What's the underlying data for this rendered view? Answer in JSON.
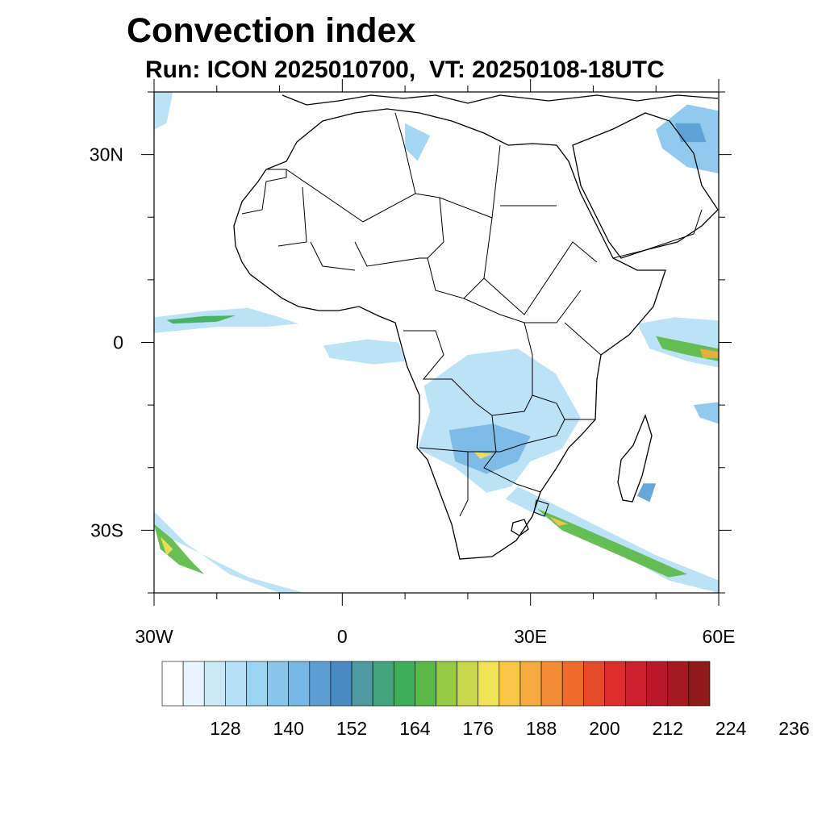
{
  "title": "Convection index",
  "subtitle": "Run: ICON 2025010700,  VT: 20250108-18UTC",
  "map": {
    "lon_range": [
      -30,
      60
    ],
    "lat_range": [
      -40,
      40
    ],
    "lat_tick_labels": [
      {
        "lat": 30,
        "label": "30N"
      },
      {
        "lat": 0,
        "label": "0"
      },
      {
        "lat": -30,
        "label": "30S"
      }
    ],
    "lon_tick_labels": [
      {
        "lon": -30,
        "label": "30W"
      },
      {
        "lon": 0,
        "label": "0"
      },
      {
        "lon": 30,
        "label": "30E"
      },
      {
        "lon": 60,
        "label": "60E"
      }
    ],
    "minor_lat_ticks": [
      40,
      30,
      20,
      10,
      0,
      -10,
      -20,
      -30,
      -40
    ],
    "minor_lon_ticks": [
      -30,
      -20,
      -10,
      0,
      10,
      20,
      30,
      40,
      50,
      60
    ]
  },
  "colorbar": {
    "colors": [
      "#ffffff",
      "#e8f4fb",
      "#cbe8f6",
      "#b6e0f5",
      "#9bd4f1",
      "#89c6ec",
      "#79b7e5",
      "#5b9fd4",
      "#4a8ac2",
      "#4f9aa0",
      "#43a57c",
      "#3fae5a",
      "#5cb947",
      "#98c947",
      "#c7d84e",
      "#f0e356",
      "#f7c649",
      "#f4aa40",
      "#f28c37",
      "#ee6b2e",
      "#e54a2a",
      "#dc2e2a",
      "#cc1f2c",
      "#b8182a",
      "#a31a22",
      "#8e1a1a"
    ],
    "labels": [
      "128",
      "140",
      "152",
      "164",
      "176",
      "188",
      "200",
      "212",
      "224",
      "236"
    ]
  },
  "fields": [
    {
      "name": "gulf-of-guinea-west",
      "level": 3,
      "poly": [
        [
          -30,
          4
        ],
        [
          -22,
          5
        ],
        [
          -15,
          5.5
        ],
        [
          -10,
          4
        ],
        [
          -7,
          3
        ],
        [
          -12,
          2.5
        ],
        [
          -20,
          2.5
        ],
        [
          -30,
          1.5
        ]
      ]
    },
    {
      "name": "gulf-of-guinea-core",
      "level": 11,
      "poly": [
        [
          -28,
          3.6
        ],
        [
          -22,
          4.2
        ],
        [
          -17,
          4.3
        ],
        [
          -20,
          3.3
        ],
        [
          -27,
          3
        ]
      ]
    },
    {
      "name": "south-atlantic-band",
      "level": 3,
      "poly": [
        [
          -30,
          -27
        ],
        [
          -25,
          -32
        ],
        [
          -18,
          -37
        ],
        [
          -10,
          -40
        ],
        [
          -6,
          -40
        ],
        [
          -15,
          -37.5
        ],
        [
          -24,
          -33
        ],
        [
          -30,
          -30
        ]
      ]
    },
    {
      "name": "south-atlantic-core",
      "level": 12,
      "poly": [
        [
          -30,
          -29
        ],
        [
          -27,
          -31.5
        ],
        [
          -24,
          -35
        ],
        [
          -22,
          -37
        ],
        [
          -26,
          -35.5
        ],
        [
          -29,
          -33
        ]
      ]
    },
    {
      "name": "south-atlantic-hot",
      "level": 15,
      "poly": [
        [
          -29,
          -31
        ],
        [
          -27,
          -33
        ],
        [
          -28,
          -34
        ]
      ]
    },
    {
      "name": "southern-africa",
      "level": 3,
      "poly": [
        [
          13,
          -7
        ],
        [
          20,
          -2
        ],
        [
          28,
          -1
        ],
        [
          34,
          -5
        ],
        [
          38,
          -12
        ],
        [
          35,
          -17
        ],
        [
          30,
          -19
        ],
        [
          27,
          -23
        ],
        [
          23,
          -24
        ],
        [
          18,
          -20
        ],
        [
          12,
          -17
        ],
        [
          14,
          -11
        ]
      ]
    },
    {
      "name": "southern-africa-core",
      "level": 6,
      "poly": [
        [
          17,
          -14
        ],
        [
          24,
          -13
        ],
        [
          30,
          -15
        ],
        [
          28,
          -19
        ],
        [
          23,
          -21
        ],
        [
          18,
          -19
        ]
      ]
    },
    {
      "name": "botswana-hot",
      "level": 15,
      "poly": [
        [
          21,
          -17.5
        ],
        [
          24,
          -17.8
        ],
        [
          22,
          -18.6
        ]
      ]
    },
    {
      "name": "natal-band",
      "level": 3,
      "poly": [
        [
          28,
          -23
        ],
        [
          33,
          -25.5
        ],
        [
          40,
          -29
        ],
        [
          50,
          -34
        ],
        [
          60,
          -38
        ],
        [
          60,
          -40
        ],
        [
          52,
          -38
        ],
        [
          43,
          -33
        ],
        [
          35,
          -29
        ],
        [
          30,
          -27
        ],
        [
          26,
          -25
        ]
      ]
    },
    {
      "name": "natal-core",
      "level": 12,
      "poly": [
        [
          31,
          -26.5
        ],
        [
          38,
          -29.5
        ],
        [
          46,
          -33
        ],
        [
          55,
          -37
        ],
        [
          52,
          -37.5
        ],
        [
          43,
          -33.5
        ],
        [
          35,
          -30
        ]
      ]
    },
    {
      "name": "natal-hot",
      "level": 16,
      "poly": [
        [
          33,
          -27.8
        ],
        [
          36,
          -29
        ],
        [
          34.5,
          -29.3
        ]
      ]
    },
    {
      "name": "east-indian-ocean",
      "level": 3,
      "poly": [
        [
          47,
          3
        ],
        [
          53,
          4
        ],
        [
          60,
          3.5
        ],
        [
          60,
          -4
        ],
        [
          55,
          -3
        ],
        [
          49,
          -1
        ]
      ]
    },
    {
      "name": "east-indian-core",
      "level": 12,
      "poly": [
        [
          50,
          1
        ],
        [
          55,
          0
        ],
        [
          60,
          -1
        ],
        [
          60,
          -3
        ],
        [
          55,
          -2
        ],
        [
          51,
          -1
        ]
      ]
    },
    {
      "name": "east-indian-hot",
      "level": 17,
      "poly": [
        [
          57,
          -1
        ],
        [
          60,
          -1.5
        ],
        [
          60,
          -2.5
        ],
        [
          57.5,
          -2.5
        ]
      ]
    },
    {
      "name": "arabian-gulf",
      "level": 5,
      "poly": [
        [
          50,
          34
        ],
        [
          55,
          38
        ],
        [
          60,
          37
        ],
        [
          60,
          27
        ],
        [
          55,
          28
        ],
        [
          51,
          31
        ]
      ]
    },
    {
      "name": "arabian-gulf-core",
      "level": 7,
      "poly": [
        [
          53,
          35
        ],
        [
          57,
          35
        ],
        [
          58,
          32
        ],
        [
          54,
          32
        ]
      ]
    },
    {
      "name": "madagascar",
      "level": 7,
      "poly": [
        [
          48,
          -22.5
        ],
        [
          50,
          -22.5
        ],
        [
          49,
          -25.5
        ],
        [
          47,
          -24.5
        ]
      ]
    },
    {
      "name": "mediterranean",
      "level": 4,
      "poly": [
        [
          10,
          35
        ],
        [
          14,
          33
        ],
        [
          12,
          29
        ],
        [
          10,
          31
        ]
      ]
    },
    {
      "name": "congo-basin",
      "level": 3,
      "poly": [
        [
          -3,
          -0.5
        ],
        [
          4,
          0.5
        ],
        [
          9,
          0
        ],
        [
          10,
          -3
        ],
        [
          5,
          -3.5
        ],
        [
          -2,
          -2.5
        ]
      ]
    },
    {
      "name": "west-edge-north",
      "level": 3,
      "poly": [
        [
          -30,
          40
        ],
        [
          -27,
          40
        ],
        [
          -28,
          35
        ],
        [
          -30,
          34
        ]
      ]
    },
    {
      "name": "mozambique-channel",
      "level": 5,
      "poly": [
        [
          56,
          -10
        ],
        [
          60,
          -9.5
        ],
        [
          60,
          -13
        ],
        [
          57,
          -12
        ]
      ]
    }
  ]
}
